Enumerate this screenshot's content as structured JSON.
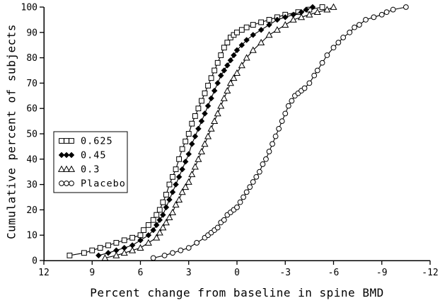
{
  "chart_data": {
    "type": "line",
    "title": "",
    "xlabel": "Percent change from baseline in spine BMD",
    "ylabel": "Cumulative percent of subjects",
    "x_axis": {
      "ticks": [
        12,
        9,
        6,
        3,
        0,
        -3,
        -6,
        -9,
        -12
      ],
      "range": [
        12,
        -12
      ],
      "reversed": true
    },
    "y_axis": {
      "ticks": [
        0,
        10,
        20,
        30,
        40,
        50,
        60,
        70,
        80,
        90,
        100
      ],
      "range": [
        0,
        100
      ]
    },
    "grid": false,
    "legend": {
      "position": "middle-left",
      "entries": [
        "0.625",
        "0.45",
        "0.3",
        "Placebo"
      ]
    },
    "series": [
      {
        "name": "0.625",
        "marker": "square",
        "points": [
          [
            10.4,
            2
          ],
          [
            9.5,
            3
          ],
          [
            9,
            4
          ],
          [
            8.5,
            5
          ],
          [
            8,
            6
          ],
          [
            7.5,
            7
          ],
          [
            7,
            8
          ],
          [
            6.5,
            9
          ],
          [
            6,
            10
          ],
          [
            5.8,
            12
          ],
          [
            5.5,
            14
          ],
          [
            5.2,
            16
          ],
          [
            5,
            18
          ],
          [
            4.8,
            20
          ],
          [
            4.6,
            23
          ],
          [
            4.4,
            26
          ],
          [
            4.2,
            30
          ],
          [
            4,
            33
          ],
          [
            3.8,
            36
          ],
          [
            3.6,
            40
          ],
          [
            3.4,
            44
          ],
          [
            3.2,
            47
          ],
          [
            3,
            50
          ],
          [
            2.8,
            54
          ],
          [
            2.6,
            57
          ],
          [
            2.4,
            60
          ],
          [
            2.2,
            63
          ],
          [
            2,
            66
          ],
          [
            1.8,
            69
          ],
          [
            1.6,
            72
          ],
          [
            1.4,
            75
          ],
          [
            1.2,
            78
          ],
          [
            1,
            81
          ],
          [
            0.8,
            84
          ],
          [
            0.6,
            86
          ],
          [
            0.4,
            88
          ],
          [
            0.2,
            89
          ],
          [
            0,
            90
          ],
          [
            -0.3,
            91
          ],
          [
            -0.6,
            92
          ],
          [
            -1,
            93
          ],
          [
            -1.5,
            94
          ],
          [
            -2,
            95
          ],
          [
            -2.5,
            96
          ],
          [
            -3,
            97
          ],
          [
            -3.8,
            98
          ],
          [
            -4.5,
            99
          ],
          [
            -5.3,
            100
          ]
        ]
      },
      {
        "name": "0.45",
        "marker": "diamond",
        "points": [
          [
            8.6,
            2
          ],
          [
            8,
            3
          ],
          [
            7.5,
            4
          ],
          [
            7,
            5
          ],
          [
            6.5,
            6
          ],
          [
            6,
            8
          ],
          [
            5.5,
            10
          ],
          [
            5.2,
            12
          ],
          [
            5,
            14
          ],
          [
            4.8,
            16
          ],
          [
            4.6,
            18
          ],
          [
            4.4,
            21
          ],
          [
            4.2,
            24
          ],
          [
            4,
            27
          ],
          [
            3.8,
            30
          ],
          [
            3.6,
            33
          ],
          [
            3.4,
            36
          ],
          [
            3.2,
            39
          ],
          [
            3,
            42
          ],
          [
            2.8,
            46
          ],
          [
            2.6,
            49
          ],
          [
            2.4,
            52
          ],
          [
            2.2,
            55
          ],
          [
            2,
            58
          ],
          [
            1.8,
            61
          ],
          [
            1.6,
            64
          ],
          [
            1.4,
            67
          ],
          [
            1.2,
            70
          ],
          [
            1,
            73
          ],
          [
            0.8,
            75
          ],
          [
            0.6,
            77
          ],
          [
            0.4,
            79
          ],
          [
            0.2,
            81
          ],
          [
            0,
            83
          ],
          [
            -0.3,
            85
          ],
          [
            -0.6,
            87
          ],
          [
            -1,
            89
          ],
          [
            -1.5,
            91
          ],
          [
            -2,
            93
          ],
          [
            -2.5,
            95
          ],
          [
            -3,
            96
          ],
          [
            -3.5,
            97
          ],
          [
            -4,
            98
          ],
          [
            -4.3,
            99
          ],
          [
            -4.7,
            100
          ]
        ]
      },
      {
        "name": "0.3",
        "marker": "triangle",
        "points": [
          [
            8.2,
            1
          ],
          [
            7.5,
            2
          ],
          [
            7,
            3
          ],
          [
            6.5,
            4
          ],
          [
            6,
            5
          ],
          [
            5.5,
            7
          ],
          [
            5,
            9
          ],
          [
            4.8,
            11
          ],
          [
            4.6,
            13
          ],
          [
            4.4,
            15
          ],
          [
            4.2,
            17
          ],
          [
            4,
            19
          ],
          [
            3.8,
            22
          ],
          [
            3.6,
            24
          ],
          [
            3.4,
            27
          ],
          [
            3.2,
            29
          ],
          [
            3,
            31
          ],
          [
            2.8,
            34
          ],
          [
            2.6,
            37
          ],
          [
            2.4,
            40
          ],
          [
            2.2,
            43
          ],
          [
            2,
            46
          ],
          [
            1.8,
            49
          ],
          [
            1.6,
            52
          ],
          [
            1.4,
            55
          ],
          [
            1.2,
            58
          ],
          [
            1,
            61
          ],
          [
            0.8,
            64
          ],
          [
            0.6,
            67
          ],
          [
            0.4,
            70
          ],
          [
            0.2,
            72
          ],
          [
            0,
            74
          ],
          [
            -0.3,
            77
          ],
          [
            -0.6,
            80
          ],
          [
            -1,
            83
          ],
          [
            -1.5,
            86
          ],
          [
            -2,
            89
          ],
          [
            -2.5,
            91
          ],
          [
            -3,
            93
          ],
          [
            -3.5,
            95
          ],
          [
            -4,
            96
          ],
          [
            -4.5,
            97
          ],
          [
            -5,
            98
          ],
          [
            -5.6,
            99
          ],
          [
            -6,
            100
          ]
        ]
      },
      {
        "name": "Placebo",
        "marker": "circle",
        "points": [
          [
            5.2,
            1
          ],
          [
            4.5,
            2
          ],
          [
            4,
            3
          ],
          [
            3.5,
            4
          ],
          [
            3,
            5
          ],
          [
            2.5,
            7
          ],
          [
            2,
            9
          ],
          [
            1.8,
            10
          ],
          [
            1.6,
            11
          ],
          [
            1.4,
            12
          ],
          [
            1.2,
            13
          ],
          [
            1,
            15
          ],
          [
            0.8,
            16
          ],
          [
            0.6,
            18
          ],
          [
            0.4,
            19
          ],
          [
            0.2,
            20
          ],
          [
            0,
            21
          ],
          [
            -0.2,
            23
          ],
          [
            -0.4,
            25
          ],
          [
            -0.6,
            27
          ],
          [
            -0.8,
            29
          ],
          [
            -1,
            31
          ],
          [
            -1.2,
            33
          ],
          [
            -1.4,
            35
          ],
          [
            -1.6,
            38
          ],
          [
            -1.8,
            40
          ],
          [
            -2,
            43
          ],
          [
            -2.2,
            46
          ],
          [
            -2.4,
            49
          ],
          [
            -2.6,
            52
          ],
          [
            -2.8,
            55
          ],
          [
            -3,
            58
          ],
          [
            -3.2,
            61
          ],
          [
            -3.4,
            63
          ],
          [
            -3.6,
            65
          ],
          [
            -3.8,
            66
          ],
          [
            -4,
            67
          ],
          [
            -4.2,
            68
          ],
          [
            -4.5,
            70
          ],
          [
            -4.8,
            73
          ],
          [
            -5,
            75
          ],
          [
            -5.3,
            78
          ],
          [
            -5.6,
            81
          ],
          [
            -6,
            84
          ],
          [
            -6.3,
            86
          ],
          [
            -6.6,
            88
          ],
          [
            -7,
            90
          ],
          [
            -7.3,
            92
          ],
          [
            -7.6,
            93
          ],
          [
            -8,
            95
          ],
          [
            -8.5,
            96
          ],
          [
            -9,
            97
          ],
          [
            -9.3,
            98
          ],
          [
            -9.7,
            99
          ],
          [
            -10.5,
            100
          ]
        ]
      }
    ]
  },
  "colors": {
    "stroke": "#000000",
    "background": "#ffffff"
  }
}
